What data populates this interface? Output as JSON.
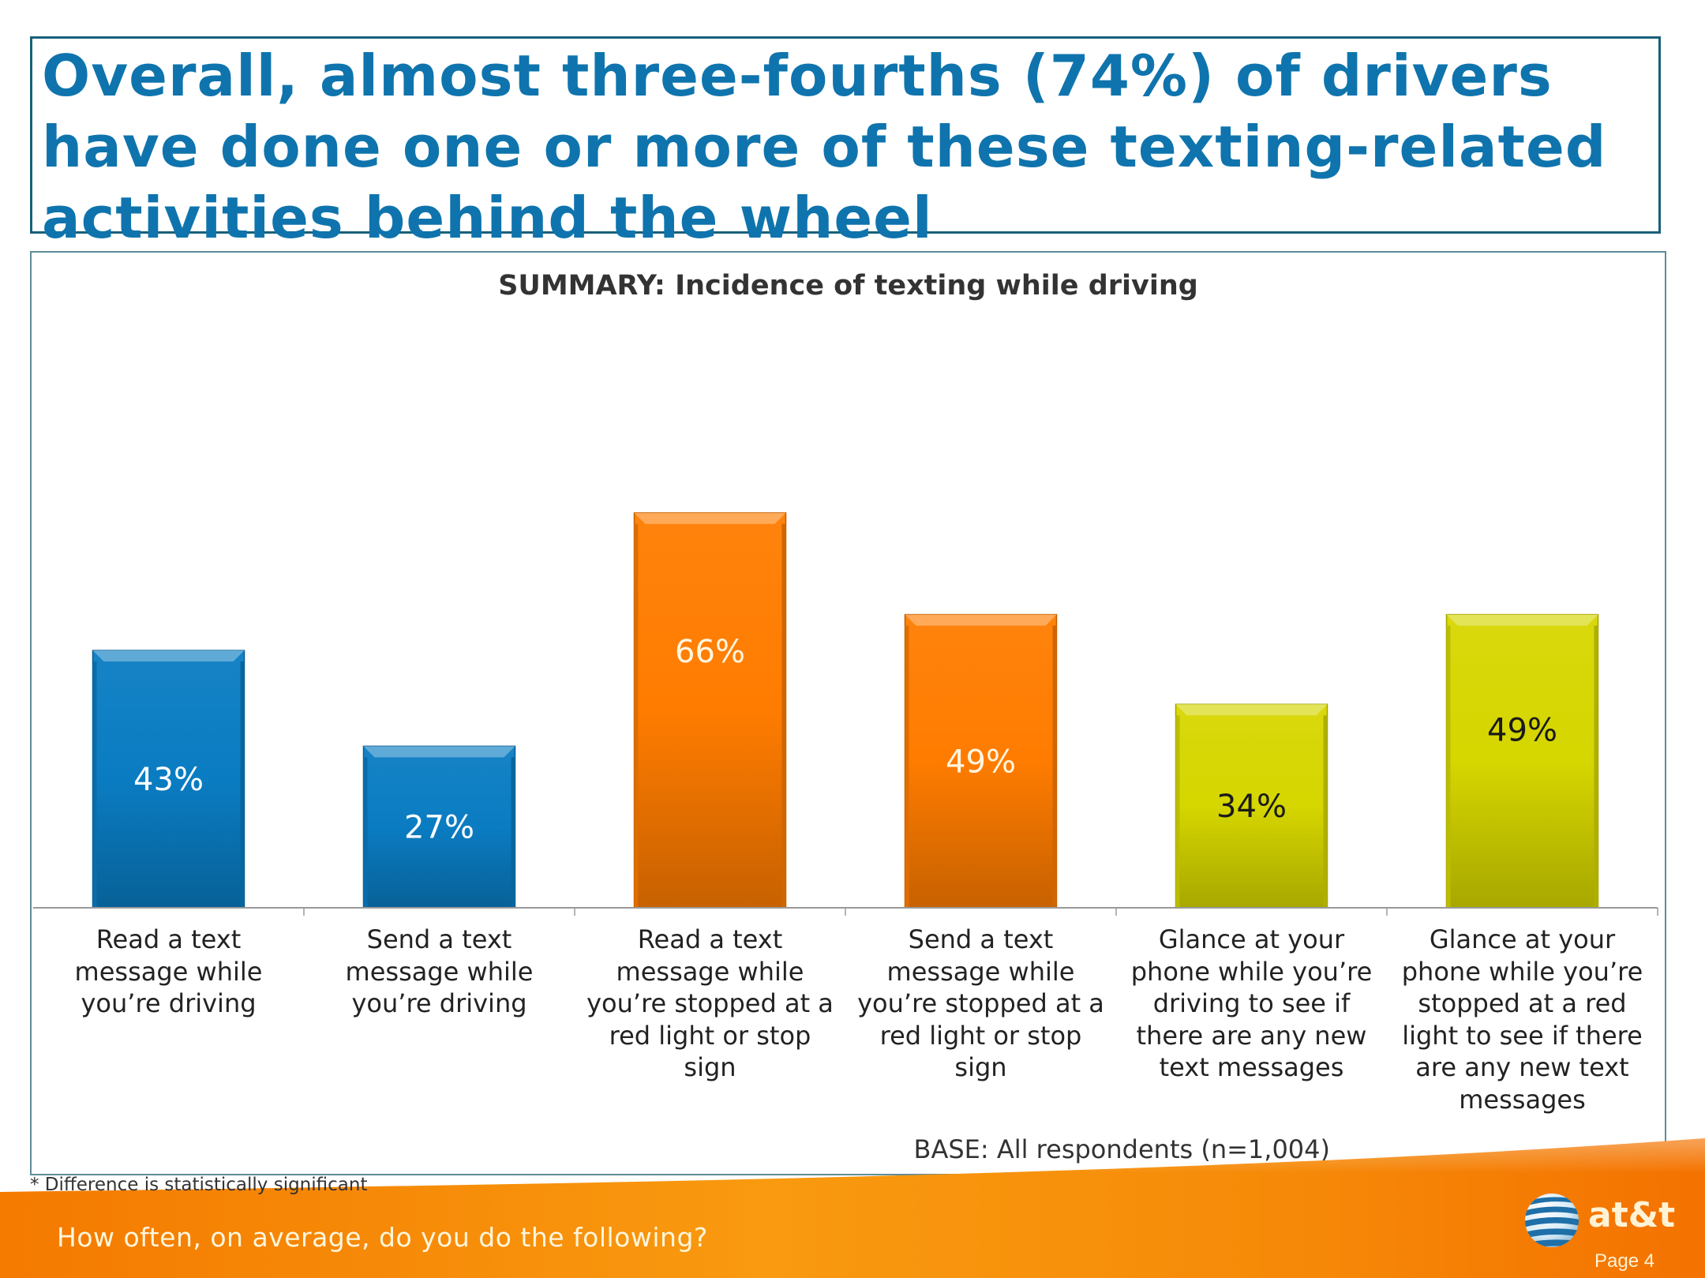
{
  "slide": {
    "title": "Overall, almost three-fourths (74%) of drivers have done one or more of these texting-related activities behind the wheel",
    "title_color": "#0f74ad",
    "footnote": "* Difference is statistically significant",
    "footer_question": "How often, on average, do you do the following?",
    "logo_text": "at&t",
    "logo_icon": "globe-icon",
    "page_label": "Page 4",
    "footer_color": "#f57c00"
  },
  "chart_data": {
    "type": "bar",
    "title": "SUMMARY: Incidence of texting while driving",
    "xlabel": "",
    "ylabel": "",
    "ylim": [
      0,
      100
    ],
    "grid": false,
    "legend": "none",
    "note": "BASE: All respondents (n=1,004)",
    "categories": [
      "Read a text message while you’re driving",
      "Send a text message while you’re driving",
      "Read a text message while you’re stopped at a red light or stop sign",
      "Send a text message while you’re stopped at a red light or stop sign",
      "Glance at your phone while you’re driving to see if there are any new text messages",
      "Glance at your phone while you’re stopped at a red light to see if there are any new text messages"
    ],
    "category_lines": [
      [
        "Read a text",
        "message while",
        "you’re driving"
      ],
      [
        "Send a text",
        "message while",
        "you’re driving"
      ],
      [
        "Read a text",
        "message while",
        "you’re stopped at a",
        "red light or stop",
        "sign"
      ],
      [
        "Send a text",
        "message while",
        "you’re stopped at a",
        "red light or stop",
        "sign"
      ],
      [
        "Glance at your",
        "phone while you’re",
        "driving to see if",
        "there are any new",
        "text messages"
      ],
      [
        "Glance at your",
        "phone while you’re",
        "stopped at a red",
        "light to see if there",
        "are any new text",
        "messages"
      ]
    ],
    "values": [
      43,
      27,
      66,
      49,
      34,
      49
    ],
    "value_labels": [
      "43%",
      "27%",
      "66%",
      "49%",
      "34%",
      "49%"
    ],
    "bar_colors": [
      "#0a7cc2",
      "#0a7cc2",
      "#ff7c00",
      "#ff7c00",
      "#d6d600",
      "#d6d600"
    ],
    "label_colors": [
      "#ffffff",
      "#ffffff",
      "#fff6e0",
      "#fff6e0",
      "#1a1a1a",
      "#1a1a1a"
    ]
  }
}
